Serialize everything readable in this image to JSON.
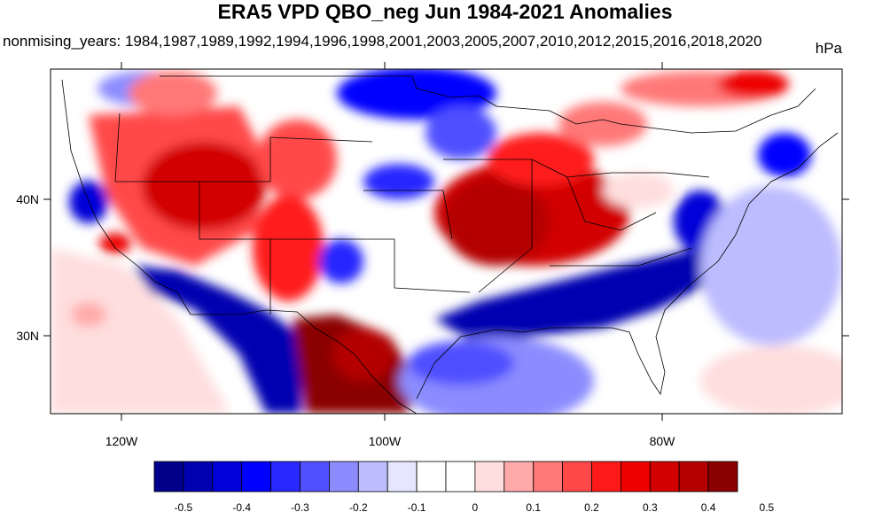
{
  "map": {
    "title": "ERA5 VPD QBO_neg Jun 1984-2021 Anomalies",
    "subtitle": "nonmising_years: 1984,1987,1989,1992,1994,1996,1998,2001,2003,2005,2007,2010,2012,2015,2016,2018,2020",
    "units": "hPa",
    "x_ticks": [
      "120W",
      "100W",
      "80W"
    ],
    "y_ticks": [
      "40N",
      "30N"
    ],
    "extent": {
      "lon": [
        -125,
        -65
      ],
      "lat": [
        24.5,
        50
      ]
    }
  },
  "colorbar": {
    "labels": [
      "-0.5",
      "-0.4",
      "-0.3",
      "-0.2",
      "-0.1",
      "0",
      "0.1",
      "0.2",
      "0.3",
      "0.4",
      "0.5"
    ],
    "colors": [
      "#00008b",
      "#0000b0",
      "#0000d8",
      "#0000ff",
      "#2828ff",
      "#5050ff",
      "#8c8cff",
      "#bcbcff",
      "#e6e6ff",
      "#ffffff",
      "#ffffff",
      "#ffdede",
      "#ffaaaa",
      "#ff7878",
      "#ff4848",
      "#ff1a1a",
      "#ee0000",
      "#d20000",
      "#b40000",
      "#8b0000"
    ]
  }
}
